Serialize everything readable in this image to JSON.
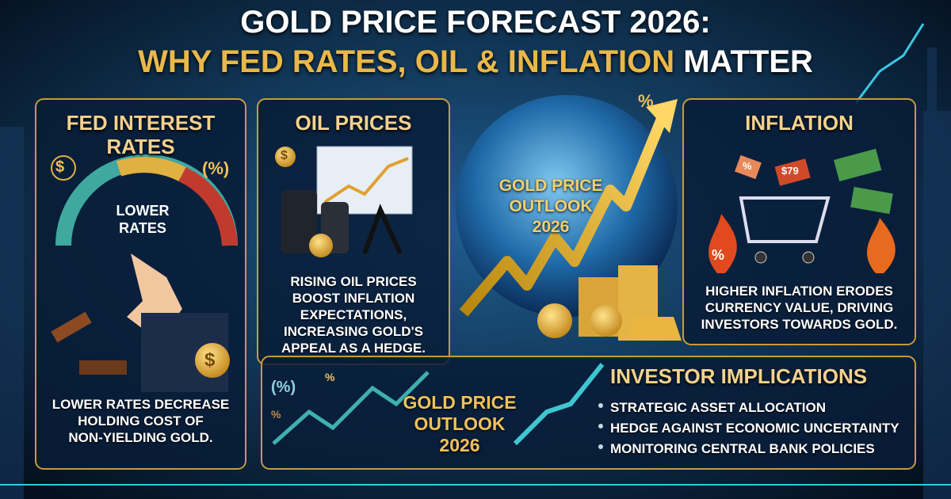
{
  "header": {
    "title_line1": "GOLD PRICE FORECAST 2026:",
    "title_line2_gold": "WHY FED RATES, OIL & INFLATION",
    "title_line2_white": "MATTER"
  },
  "fed_panel": {
    "title": [
      "FED INTEREST",
      "RATES"
    ],
    "icon_dollar": "$",
    "icon_percent": "(%)",
    "gauge_label": [
      "LOWER",
      "RATES"
    ],
    "coin": "$",
    "body": [
      "LOWER RATES DECREASE",
      "HOLDING COST OF",
      "NON-YIELDING GOLD."
    ]
  },
  "oil_panel": {
    "title": "OIL PRICES",
    "coin": "$",
    "body": [
      "RISING OIL PRICES",
      "BOOST INFLATION",
      "EXPECTATIONS,",
      "INCREASING GOLD'S",
      "APPEAL AS A HEDGE."
    ]
  },
  "center": {
    "globe_label": [
      "GOLD PRICE",
      "OUTLOOK",
      "2026"
    ],
    "percent": "%"
  },
  "inflation_panel": {
    "title": "INFLATION",
    "tag_percent": "%",
    "tag_price": "$79",
    "fire_percent": "%",
    "body": [
      "HIGHER INFLATION ERODES",
      "CURRENCY VALUE, DRIVING",
      "INVESTORS TOWARDS GOLD."
    ]
  },
  "bottom_panel": {
    "percent_icon": "(%)",
    "percent_small": [
      "%",
      "%"
    ],
    "outlook": [
      "GOLD PRICE",
      "OUTLOOK",
      "2026"
    ],
    "title": "INVESTOR IMPLICATIONS",
    "bullets": [
      "STRATEGIC ASSET ALLOCATION",
      "HEDGE AGAINST ECONOMIC UNCERTAINTY",
      "MONITORING CENTRAL BANK POLICIES"
    ]
  }
}
